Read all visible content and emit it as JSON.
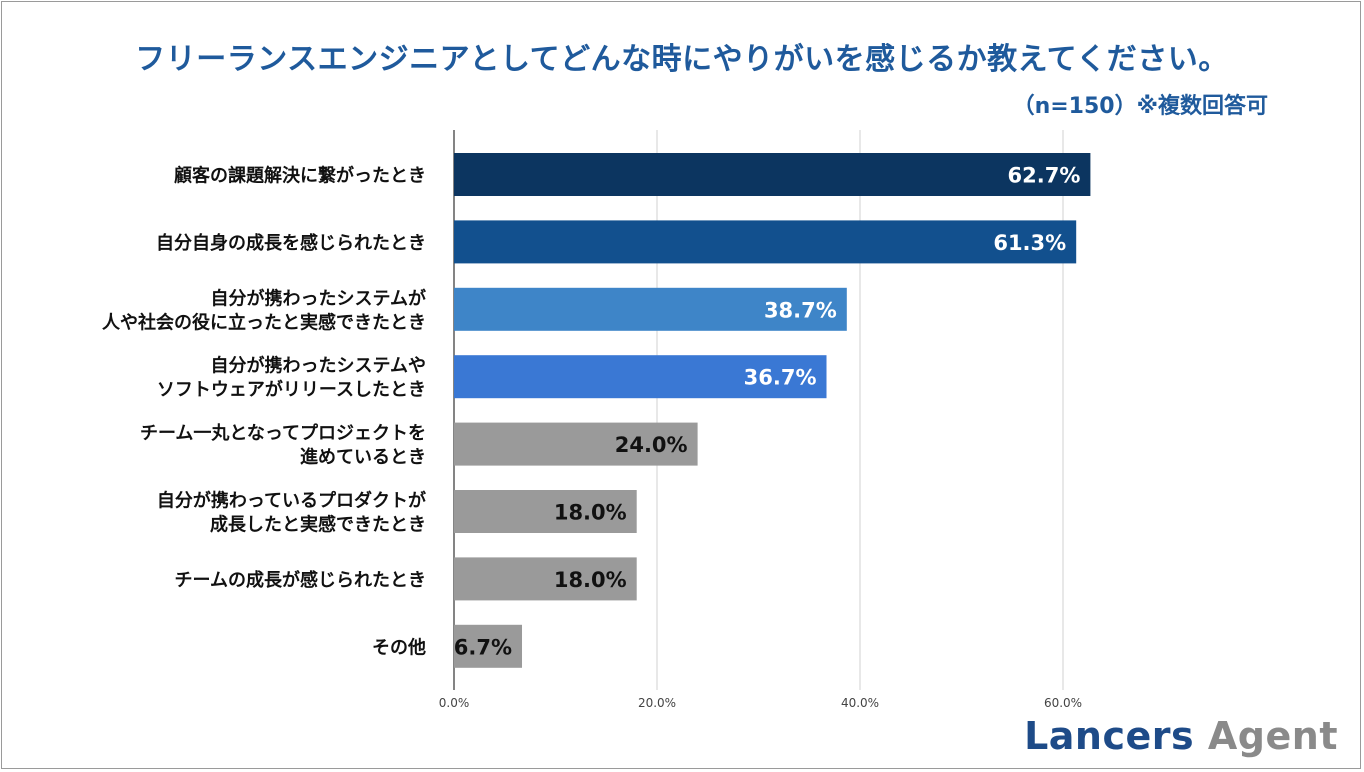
{
  "header": {
    "title": "フリーランスエンジニアとしてどんな時にやりがいを感じるか教えてください。",
    "subtitle": "（n=150）※複数回答可"
  },
  "brand": {
    "part1": "Lancers",
    "part2": "Agent",
    "color1": "#1e4b88",
    "color2": "#8a8a8a"
  },
  "chart_data": {
    "type": "bar",
    "orientation": "horizontal",
    "categories": [
      [
        "顧客の課題解決に繋がったとき"
      ],
      [
        "自分自身の成長を感じられたとき"
      ],
      [
        "自分が携わったシステムが",
        "人や社会の役に立ったと実感できたとき"
      ],
      [
        "自分が携わったシステムや",
        "ソフトウェアがリリースしたとき"
      ],
      [
        "チーム一丸となってプロジェクトを",
        "進めているとき"
      ],
      [
        "自分が携わっているプロダクトが",
        "成長したと実感できたとき"
      ],
      [
        "チームの成長が感じられたとき"
      ],
      [
        "その他"
      ]
    ],
    "values": [
      62.7,
      61.3,
      38.7,
      36.7,
      24.0,
      18.0,
      18.0,
      6.7
    ],
    "value_labels": [
      "62.7%",
      "61.3%",
      "38.7%",
      "36.7%",
      "24.0%",
      "18.0%",
      "18.0%",
      "6.7%"
    ],
    "bar_colors": [
      "#0c3560",
      "#12508e",
      "#3e85c8",
      "#3a78d4",
      "#9a9a9a",
      "#9a9a9a",
      "#9a9a9a",
      "#9a9a9a"
    ],
    "label_colors": [
      "#ffffff",
      "#ffffff",
      "#ffffff",
      "#ffffff",
      "#111111",
      "#111111",
      "#111111",
      "#111111"
    ],
    "xlim": [
      0,
      60
    ],
    "xticks": [
      0,
      20,
      40,
      60
    ],
    "xtick_labels": [
      "0.0%",
      "20.0%",
      "40.0%",
      "60.0%"
    ],
    "grid": true,
    "legend": "none"
  }
}
